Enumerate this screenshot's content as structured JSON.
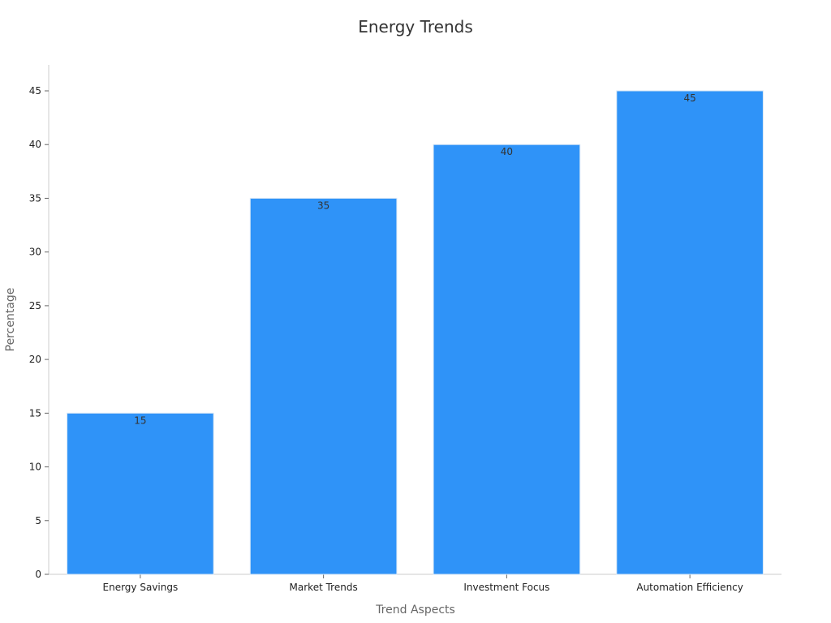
{
  "chart_data": {
    "type": "bar",
    "title": "Energy Trends",
    "xlabel": "Trend Aspects",
    "ylabel": "Percentage",
    "categories": [
      "Energy Savings",
      "Market Trends",
      "Investment Focus",
      "Automation Efficiency"
    ],
    "values": [
      15,
      35,
      40,
      45
    ],
    "ylim": [
      0,
      47
    ],
    "yticks": [
      0,
      5,
      10,
      15,
      20,
      25,
      30,
      35,
      40,
      45
    ],
    "grid": false,
    "bar_color": "#2f93f8",
    "bar_edge_color": "#d6e6f5"
  }
}
